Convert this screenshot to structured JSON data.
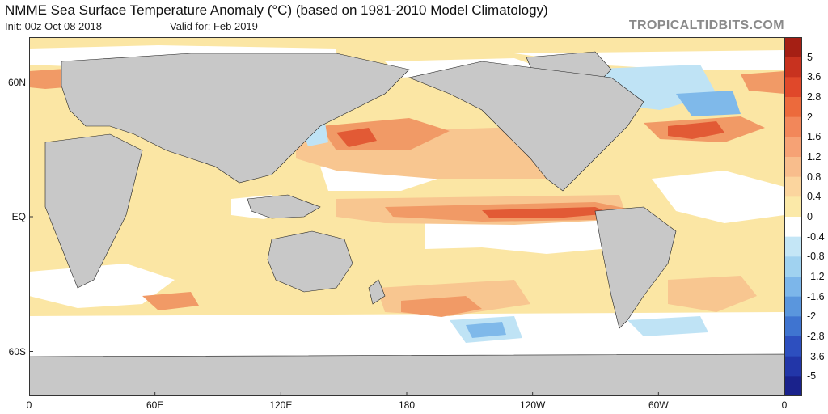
{
  "header": {
    "title": "NMME Sea Surface Temperature Anomaly (°C) (based on 1981-2010 Model Climatology)",
    "init": "Init: 00z Oct 08 2018",
    "valid": "Valid for: Feb 2019",
    "brand": "TROPICALTIDBITS.COM"
  },
  "axes": {
    "y_ticks": [
      {
        "label": "60N",
        "lat": 60
      },
      {
        "label": "EQ",
        "lat": 0
      },
      {
        "label": "60S",
        "lat": -60
      }
    ],
    "x_ticks": [
      {
        "label": "0",
        "lon": 0
      },
      {
        "label": "60E",
        "lon": 60
      },
      {
        "label": "120E",
        "lon": 120
      },
      {
        "label": "180",
        "lon": 180
      },
      {
        "label": "120W",
        "lon": 240
      },
      {
        "label": "60W",
        "lon": 300
      },
      {
        "label": "0",
        "lon": 360
      }
    ],
    "lat_range": [
      -80,
      80
    ],
    "lon_range": [
      0,
      360
    ]
  },
  "colorbar": {
    "labels": [
      "5",
      "3.6",
      "2.8",
      "2",
      "1.6",
      "1.2",
      "0.8",
      "0.4",
      "0",
      "-0.4",
      "-0.8",
      "-1.2",
      "-1.6",
      "-2",
      "-2.8",
      "-3.6",
      "-5"
    ],
    "colors": [
      "#a51f14",
      "#c8321f",
      "#e0482a",
      "#ec6a3c",
      "#f2875a",
      "#f6a275",
      "#f8bd8c",
      "#fbd59e",
      "#fbe9a8",
      "#ffffff",
      "#c4e6f6",
      "#a0d2f0",
      "#7cb6ea",
      "#5a96dd",
      "#3f74d0",
      "#2d4fbf",
      "#2236a8",
      "#1a228c"
    ]
  },
  "map": {
    "colors": {
      "ocean_background": "#fbe6a4",
      "land": "#c8c8c8",
      "neutral": "#ffffff",
      "warm_light": "#f8c690",
      "warm": "#f19a66",
      "warm_strong": "#e25a35",
      "cold_light": "#bfe3f5",
      "cold": "#7fb9ea"
    }
  }
}
